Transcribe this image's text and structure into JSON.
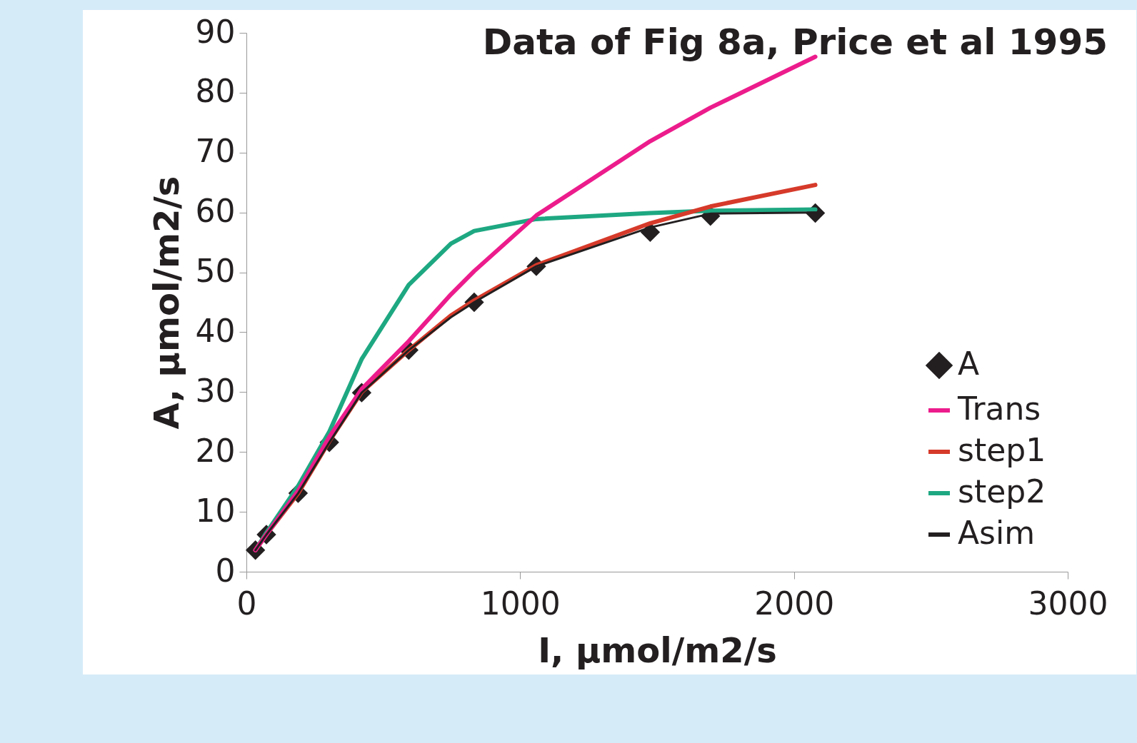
{
  "chart_data": {
    "type": "line",
    "title": "Data of Fig 8a, Price et al 1995",
    "xlabel": "I, μmol/m2/s",
    "ylabel": "A, μmol/m2/s",
    "xlim": [
      0,
      3000
    ],
    "xticks": [
      0,
      {
        "value": 1000,
        "label": "1000"
      },
      {
        "value": 2000,
        "label": "2000"
      },
      {
        "value": 3000,
        "label": "3000"
      }
    ],
    "ylim": [
      0,
      90
    ],
    "yticks": [
      0,
      10,
      20,
      30,
      40,
      50,
      60,
      70,
      80,
      90
    ],
    "grid": false,
    "legend": "bottom right",
    "series": [
      {
        "name": "A",
        "type": "scatter",
        "marker": "diamond",
        "color": "#231f20",
        "x": [
          33,
          73,
          189,
          303,
          421,
          593,
          832,
          1059,
          1475,
          1695,
          2078
        ],
        "values": [
          3.6,
          6.2,
          13.1,
          21.6,
          29.9,
          37,
          45,
          51,
          56.7,
          59.4,
          59.9
        ]
      },
      {
        "name": "Trans",
        "color": "#ec1c8c",
        "x": [
          33,
          73,
          189,
          303,
          421,
          593,
          747,
          832,
          1059,
          1475,
          1695,
          2078
        ],
        "values": [
          3.6,
          6.2,
          13.5,
          22.5,
          30.5,
          38.5,
          46.3,
          50.2,
          59.5,
          71.9,
          77.5,
          86
        ]
      },
      {
        "name": "step1",
        "color": "#d63a2a",
        "x": [
          33,
          73,
          189,
          303,
          421,
          593,
          747,
          832,
          1059,
          1475,
          1695,
          2078
        ],
        "values": [
          3.6,
          6.2,
          13.1,
          21.8,
          30,
          37,
          42.8,
          45.3,
          51.2,
          58.2,
          61,
          64.6
        ]
      },
      {
        "name": "step2",
        "color": "#1ea882",
        "x": [
          33,
          73,
          189,
          303,
          421,
          593,
          747,
          832,
          1059,
          1475,
          1695,
          2078
        ],
        "values": [
          3.6,
          6.5,
          14.3,
          23.4,
          35.5,
          47.9,
          54.8,
          56.9,
          58.9,
          59.9,
          60.3,
          60.5
        ]
      },
      {
        "name": "Asim",
        "color": "#231f20",
        "line_style": "solid",
        "x": [
          33,
          73,
          189,
          303,
          421,
          593,
          747,
          832,
          1059,
          1475,
          1695,
          2078
        ],
        "values": [
          3.6,
          6.2,
          13.1,
          21.6,
          29.9,
          37,
          42.5,
          45,
          51,
          57.5,
          59.8,
          60
        ]
      }
    ]
  }
}
